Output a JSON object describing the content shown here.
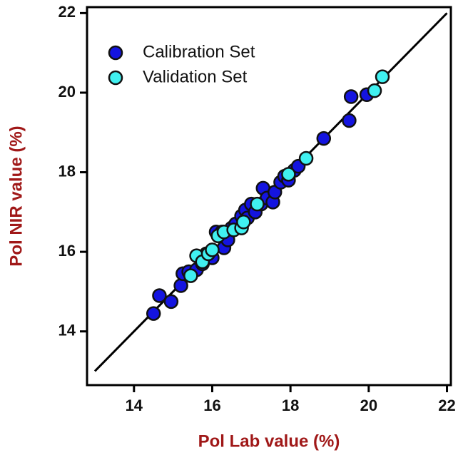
{
  "chart_data": {
    "type": "scatter",
    "x_label": "Pol Lab value (%)",
    "y_label": "Pol NIR value (%)",
    "xlim": [
      12.8,
      22.1
    ],
    "ylim": [
      12.65,
      22.15
    ],
    "xticks": [
      14,
      16,
      18,
      20,
      22
    ],
    "yticks": [
      14,
      16,
      18,
      20,
      22
    ],
    "legend": "upper left",
    "identity_line": {
      "x": [
        13,
        22
      ],
      "y": [
        13,
        22
      ],
      "color": "#000000"
    },
    "series": [
      {
        "name": "Calibration Set",
        "color": "#1414e0",
        "x": [
          14.5,
          14.65,
          14.95,
          15.2,
          15.25,
          15.4,
          15.6,
          15.75,
          15.85,
          16.0,
          16.1,
          16.25,
          16.3,
          16.4,
          16.5,
          16.6,
          16.75,
          16.85,
          16.9,
          17.0,
          17.1,
          17.25,
          17.3,
          17.4,
          17.55,
          17.6,
          17.75,
          17.85,
          17.95,
          18.1,
          18.2,
          18.85,
          19.5,
          19.55,
          19.95
        ],
        "values": [
          14.45,
          14.9,
          14.75,
          15.15,
          15.45,
          15.5,
          15.55,
          15.7,
          15.95,
          15.85,
          16.5,
          16.5,
          16.1,
          16.3,
          16.6,
          16.7,
          16.9,
          17.05,
          16.85,
          17.2,
          17.0,
          17.2,
          17.6,
          17.35,
          17.25,
          17.5,
          17.75,
          17.9,
          17.8,
          18.05,
          18.15,
          18.85,
          19.3,
          19.9,
          19.95
        ]
      },
      {
        "name": "Validation Set",
        "color": "#40f0f0",
        "x": [
          15.45,
          15.6,
          15.75,
          15.9,
          16.0,
          16.15,
          16.3,
          16.55,
          16.75,
          16.8,
          17.15,
          17.95,
          18.4,
          20.15,
          20.35
        ],
        "values": [
          15.4,
          15.9,
          15.75,
          15.95,
          16.05,
          16.4,
          16.5,
          16.55,
          16.6,
          16.75,
          17.2,
          17.95,
          18.35,
          20.05,
          20.4
        ]
      }
    ]
  }
}
